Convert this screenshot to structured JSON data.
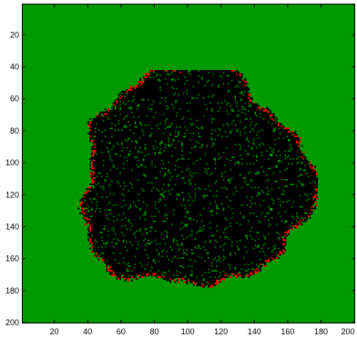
{
  "chart_data": {
    "type": "heatmap",
    "title": "",
    "xlabel": "",
    "ylabel": "",
    "xlim": [
      1,
      200
    ],
    "ylim": [
      1,
      200
    ],
    "y_axis_direction": "reversed",
    "grid": false,
    "legend": "none",
    "x_ticks": [
      20,
      40,
      60,
      80,
      100,
      120,
      140,
      160,
      180,
      200
    ],
    "y_ticks": [
      20,
      40,
      60,
      80,
      100,
      120,
      140,
      160,
      180,
      200
    ],
    "x_tick_labels": [
      "20",
      "40",
      "60",
      "80",
      "100",
      "120",
      "140",
      "160",
      "180",
      "200"
    ],
    "y_tick_labels": [
      "20",
      "40",
      "60",
      "80",
      "100",
      "120",
      "140",
      "160",
      "180",
      "200"
    ],
    "states": [
      {
        "value": 0,
        "color": "#009900",
        "meaning": "background"
      },
      {
        "value": 1,
        "color": "#000000",
        "meaning": "cluster"
      },
      {
        "value": 2,
        "color": "#ff0000",
        "meaning": "boundary"
      }
    ],
    "cluster": {
      "center": [
        103,
        110
      ],
      "x_extent": [
        22,
        177
      ],
      "y_extent": [
        42,
        178
      ],
      "approx_radius": 69,
      "interior_background_density": 0.09,
      "boundary_density": 0.35
    }
  }
}
